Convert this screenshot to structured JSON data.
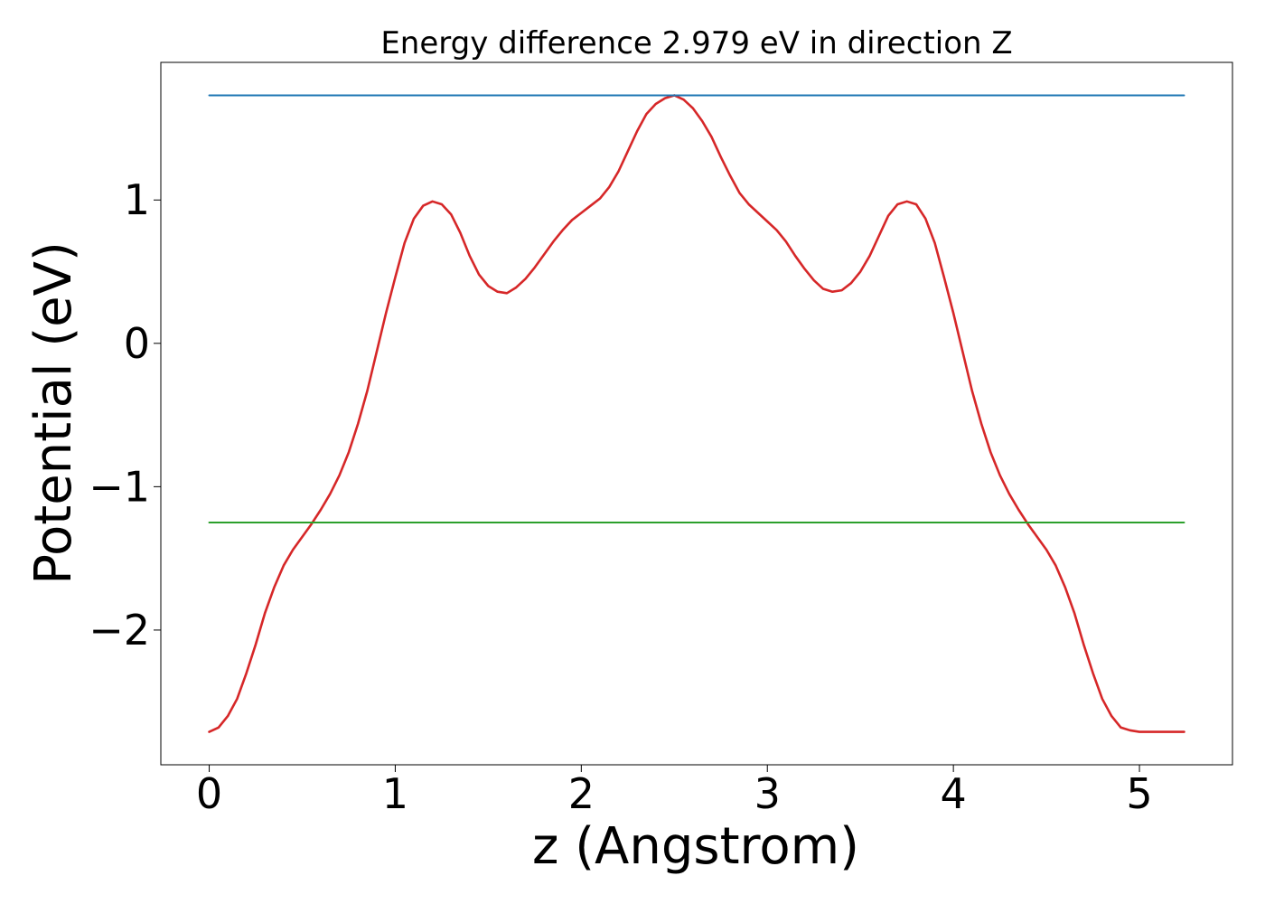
{
  "chart_data": {
    "type": "line",
    "title": "Energy difference 2.979 eV in direction Z",
    "xlabel": "z (Angstrom)",
    "ylabel": "Potential (eV)",
    "xlim": [
      -0.26,
      5.5
    ],
    "ylim": [
      -2.94,
      1.96
    ],
    "xticks": [
      0,
      1,
      2,
      3,
      4,
      5
    ],
    "xtick_labels": [
      "0",
      "1",
      "2",
      "3",
      "4",
      "5"
    ],
    "yticks": [
      -2,
      -1,
      0,
      1
    ],
    "ytick_labels": [
      "−2",
      "−1",
      "0",
      "1"
    ],
    "grid": false,
    "legend": "none",
    "colors": {
      "potential": "#d62728",
      "upper_line": "#1f77b4",
      "lower_line": "#2ca02c"
    },
    "series": [
      {
        "kind": "potential",
        "x": [
          0,
          0.05,
          0.1,
          0.15,
          0.2,
          0.25,
          0.3,
          0.35,
          0.4,
          0.45,
          0.5,
          0.55,
          0.6,
          0.65,
          0.7,
          0.75,
          0.8,
          0.85,
          0.9,
          0.95,
          1.0,
          1.05,
          1.1,
          1.15,
          1.2,
          1.25,
          1.3,
          1.35,
          1.4,
          1.45,
          1.5,
          1.55,
          1.6,
          1.65,
          1.7,
          1.75,
          1.8,
          1.85,
          1.9,
          1.95,
          2.0,
          2.05,
          2.1,
          2.15,
          2.2,
          2.25,
          2.3,
          2.35,
          2.4,
          2.45,
          2.5,
          2.55,
          2.6,
          2.65,
          2.7,
          2.75,
          2.8,
          2.85,
          2.9,
          2.95,
          3.0,
          3.05,
          3.1,
          3.15,
          3.2,
          3.25,
          3.3,
          3.35,
          3.4,
          3.45,
          3.5,
          3.55,
          3.6,
          3.65,
          3.7,
          3.75,
          3.8,
          3.85,
          3.9,
          3.95,
          4.0,
          4.05,
          4.1,
          4.15,
          4.2,
          4.25,
          4.3,
          4.35,
          4.4,
          4.45,
          4.5,
          4.55,
          4.6,
          4.65,
          4.7,
          4.75,
          4.8,
          4.85,
          4.9,
          4.95,
          5.0,
          5.05,
          5.1,
          5.15,
          5.2,
          5.24
        ],
        "y": [
          -2.71,
          -2.68,
          -2.6,
          -2.48,
          -2.3,
          -2.1,
          -1.88,
          -1.7,
          -1.55,
          -1.44,
          -1.35,
          -1.26,
          -1.16,
          -1.05,
          -0.92,
          -0.76,
          -0.56,
          -0.33,
          -0.06,
          0.21,
          0.46,
          0.7,
          0.87,
          0.96,
          0.99,
          0.97,
          0.9,
          0.77,
          0.61,
          0.48,
          0.4,
          0.36,
          0.35,
          0.39,
          0.45,
          0.53,
          0.62,
          0.71,
          0.79,
          0.86,
          0.91,
          0.96,
          1.01,
          1.09,
          1.2,
          1.34,
          1.48,
          1.6,
          1.67,
          1.71,
          1.73,
          1.7,
          1.64,
          1.55,
          1.44,
          1.3,
          1.17,
          1.05,
          0.97,
          0.91,
          0.85,
          0.79,
          0.71,
          0.61,
          0.52,
          0.44,
          0.38,
          0.36,
          0.37,
          0.42,
          0.5,
          0.61,
          0.75,
          0.89,
          0.97,
          0.99,
          0.97,
          0.87,
          0.7,
          0.46,
          0.21,
          -0.06,
          -0.33,
          -0.56,
          -0.76,
          -0.92,
          -1.05,
          -1.16,
          -1.26,
          -1.35,
          -1.44,
          -1.55,
          -1.7,
          -1.88,
          -2.1,
          -2.3,
          -2.48,
          -2.6,
          -2.68,
          -2.7,
          -2.71,
          -2.71,
          -2.71,
          -2.71,
          -2.71,
          -2.71
        ]
      },
      {
        "kind": "upper_line",
        "x": [
          0,
          5.24
        ],
        "y": [
          1.73,
          1.73
        ]
      },
      {
        "kind": "lower_line",
        "x": [
          0,
          5.24
        ],
        "y": [
          -1.25,
          -1.25
        ]
      }
    ]
  }
}
